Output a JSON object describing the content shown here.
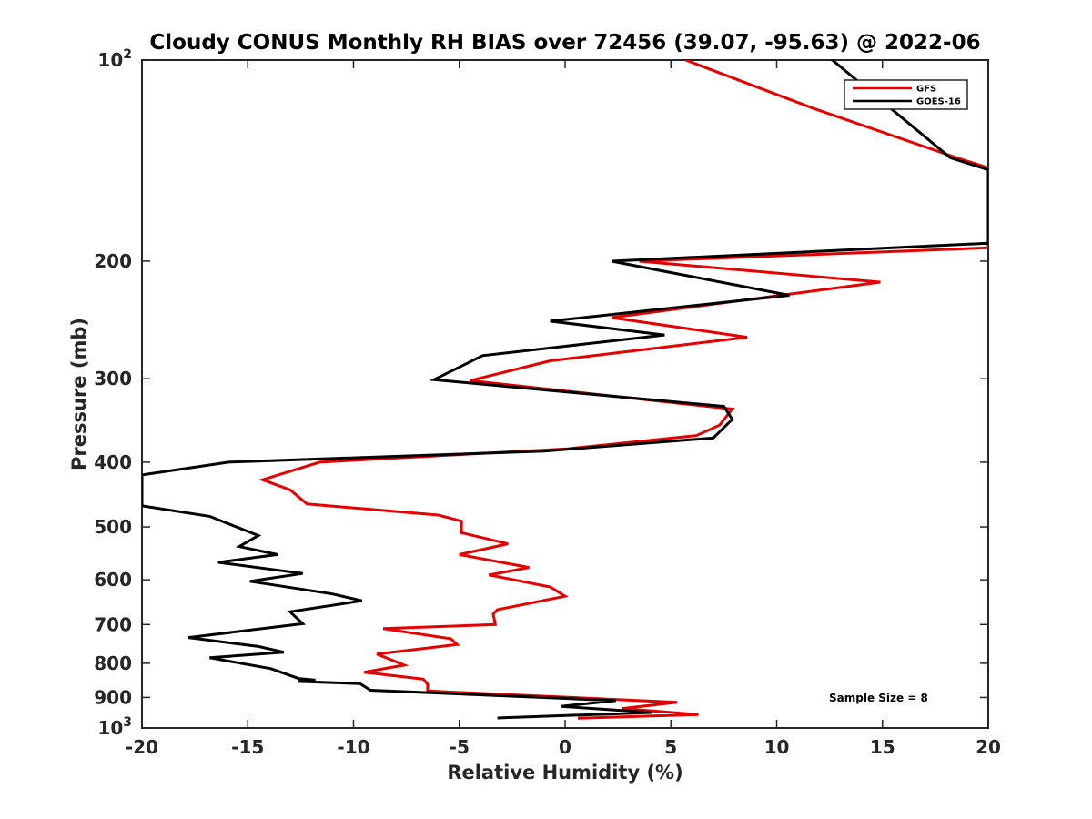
{
  "chart_data": {
    "type": "line",
    "title": "Cloudy CONUS Monthly RH BIAS over 72456 (39.07, -95.63) @ 2022-06",
    "xlabel": "Relative Humidity (%)",
    "ylabel": "Pressure (mb)",
    "xlim": [
      -20,
      20
    ],
    "ylim": [
      100,
      1000
    ],
    "yscale": "log",
    "yreverse": true,
    "grid": false,
    "xticks": [
      -20,
      -15,
      -10,
      -5,
      0,
      5,
      10,
      15,
      20
    ],
    "xtick_labels": [
      "-20",
      "-15",
      "-10",
      "-5",
      "0",
      "5",
      "10",
      "15",
      "20"
    ],
    "yticks": [
      {
        "value": 100,
        "base": "10",
        "exp": "2"
      },
      {
        "value": 200,
        "label": "200"
      },
      {
        "value": 300,
        "label": "300"
      },
      {
        "value": 400,
        "label": "400"
      },
      {
        "value": 500,
        "label": "500"
      },
      {
        "value": 600,
        "label": "600"
      },
      {
        "value": 700,
        "label": "700"
      },
      {
        "value": 800,
        "label": "800"
      },
      {
        "value": 900,
        "label": "900"
      },
      {
        "value": 1000,
        "base": "10",
        "exp": "3"
      }
    ],
    "legend_position": "top-right",
    "annotation": "Sample Size = 8",
    "series": [
      {
        "name": "GFS",
        "color": "#e60000",
        "points": [
          [
            5.7,
            100
          ],
          [
            11.7,
            118
          ],
          [
            18.5,
            140
          ],
          [
            20,
            145
          ],
          [
            20,
            191
          ],
          [
            3.5,
            200
          ],
          [
            14.9,
            215
          ],
          [
            2.2,
            243
          ],
          [
            8.6,
            260
          ],
          [
            -0.7,
            282
          ],
          [
            -4.5,
            302
          ],
          [
            7.9,
            333
          ],
          [
            7.3,
            352
          ],
          [
            6.2,
            365
          ],
          [
            0.1,
            382
          ],
          [
            -11.6,
            400
          ],
          [
            -14.3,
            425
          ],
          [
            -13.0,
            440
          ],
          [
            -12.2,
            462
          ],
          [
            -6.0,
            480
          ],
          [
            -4.9,
            490
          ],
          [
            -4.9,
            510
          ],
          [
            -2.7,
            530
          ],
          [
            -5.0,
            550
          ],
          [
            -1.7,
            575
          ],
          [
            -3.6,
            590
          ],
          [
            -0.7,
            615
          ],
          [
            0.0,
            635
          ],
          [
            -3.2,
            665
          ],
          [
            -3.4,
            675
          ],
          [
            -3.3,
            700
          ],
          [
            -8.6,
            710
          ],
          [
            -5.4,
            735
          ],
          [
            -5.1,
            750
          ],
          [
            -8.9,
            775
          ],
          [
            -7.6,
            805
          ],
          [
            -9.5,
            825
          ],
          [
            -6.7,
            845
          ],
          [
            -6.5,
            860
          ],
          [
            -6.5,
            880
          ],
          [
            5.3,
            915
          ],
          [
            2.7,
            935
          ],
          [
            6.3,
            955
          ],
          [
            0.6,
            967
          ]
        ]
      },
      {
        "name": "GOES-16",
        "color": "#000000",
        "points": [
          [
            12.3,
            98
          ],
          [
            18.2,
            140
          ],
          [
            20,
            146
          ],
          [
            20,
            188
          ],
          [
            2.2,
            200
          ],
          [
            10.6,
            225
          ],
          [
            -0.7,
            246
          ],
          [
            4.7,
            258
          ],
          [
            -3.9,
            277
          ],
          [
            -6.2,
            301
          ],
          [
            7.5,
            330
          ],
          [
            7.9,
            345
          ],
          [
            7.0,
            368
          ],
          [
            -1.0,
            385
          ],
          [
            -15.9,
            400
          ],
          [
            -20,
            418
          ],
          [
            -20,
            465
          ],
          [
            -16.8,
            482
          ],
          [
            -14.5,
            515
          ],
          [
            -15.4,
            535
          ],
          [
            -13.6,
            550
          ],
          [
            -16.4,
            565
          ],
          [
            -12.4,
            587
          ],
          [
            -14.9,
            603
          ],
          [
            -11.0,
            630
          ],
          [
            -9.6,
            645
          ],
          [
            -13.0,
            670
          ],
          [
            -12.4,
            698
          ],
          [
            -17.8,
            732
          ],
          [
            -14.5,
            755
          ],
          [
            -13.3,
            770
          ],
          [
            -16.8,
            785
          ],
          [
            -13.9,
            815
          ],
          [
            -12.6,
            843
          ],
          [
            -11.8,
            848
          ],
          [
            -12.6,
            852
          ],
          [
            -9.7,
            858
          ],
          [
            -9.2,
            878
          ],
          [
            2.4,
            910
          ],
          [
            -0.2,
            928
          ],
          [
            4.1,
            948
          ],
          [
            -2.8,
            965
          ],
          [
            -3.2,
            966
          ]
        ]
      }
    ]
  }
}
